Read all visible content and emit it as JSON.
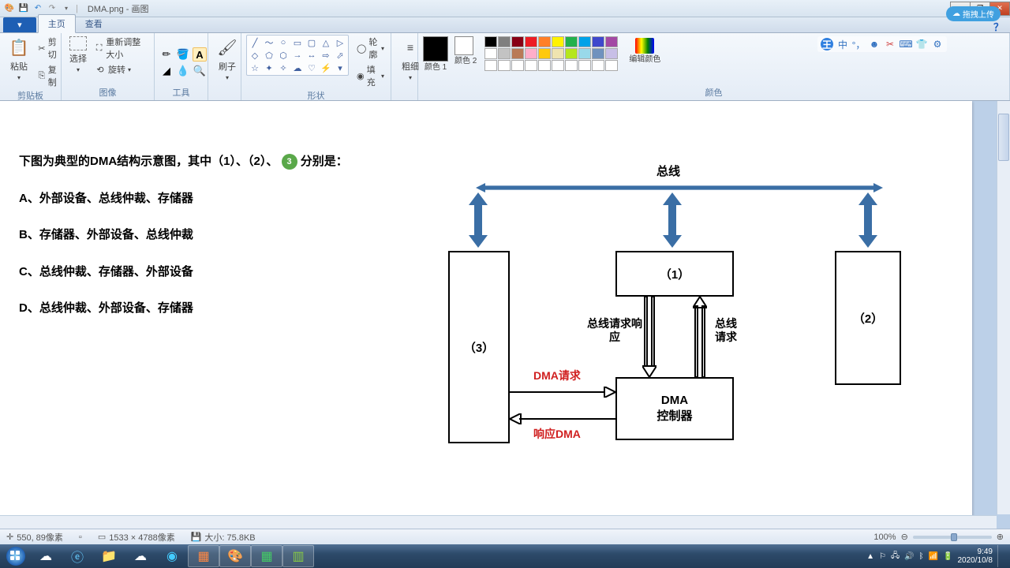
{
  "window": {
    "title": "DMA.png - 画图"
  },
  "tabs": {
    "file": "▾",
    "home": "主页",
    "view": "查看"
  },
  "ribbon": {
    "clipboard": {
      "label": "剪贴板",
      "paste": "粘贴",
      "cut": "剪切",
      "copy": "复制"
    },
    "image": {
      "label": "图像",
      "select": "选择",
      "crop": "重新调整大小",
      "rotate": "旋转"
    },
    "tools": {
      "label": "工具"
    },
    "brush": {
      "label": "刷子"
    },
    "shapes": {
      "label": "形状",
      "outline": "轮廓",
      "fill": "填充"
    },
    "size": {
      "label": "粗细"
    },
    "colors": {
      "label": "颜色",
      "c1": "颜色 1",
      "c2": "颜色 2",
      "edit": "编辑颜色"
    }
  },
  "cloud": {
    "label": "拖拽上传"
  },
  "question": {
    "stem_a": "下图为典型的DMA结构示意图，其中（1）、（2）、",
    "stem_b": "分别是：",
    "badge": "3",
    "optA": "A、外部设备、总线仲裁、存储器",
    "optB": "B、存储器、外部设备、总线仲裁",
    "optC": "C、总线仲裁、存储器、外部设备",
    "optD": "D、总线仲裁、外部设备、存储器"
  },
  "diagram": {
    "bus": "总线",
    "box1": "（1）",
    "box2": "（2）",
    "box3": "（3）",
    "dma": "DMA",
    "dma2": "控制器",
    "req_resp": "总线请求响应",
    "bus_req": "总线请求",
    "dma_req": "DMA请求",
    "dma_ack": "响应DMA",
    "colors": {
      "arrow_blue": "#3a6ea5",
      "red_text": "#d02020"
    }
  },
  "status": {
    "pos": "550, 89像素",
    "dims": "1533 × 4788像素",
    "size": "大小: 75.8KB",
    "zoom": "100%"
  },
  "tray": {
    "time": "9:49",
    "date": "2020/10/8"
  },
  "palette": {
    "row1": [
      "#000000",
      "#7f7f7f",
      "#880015",
      "#ed1c24",
      "#ff7f27",
      "#fff200",
      "#22b14c",
      "#00a2e8",
      "#3f48cc",
      "#a349a4"
    ],
    "row2": [
      "#ffffff",
      "#c3c3c3",
      "#b97a57",
      "#ffaec9",
      "#ffc90e",
      "#efe4b0",
      "#b5e61d",
      "#99d9ea",
      "#7092be",
      "#c8bfe7"
    ],
    "row3": [
      "#ffffff",
      "#ffffff",
      "#ffffff",
      "#ffffff",
      "#ffffff",
      "#ffffff",
      "#ffffff",
      "#ffffff",
      "#ffffff",
      "#ffffff"
    ]
  }
}
